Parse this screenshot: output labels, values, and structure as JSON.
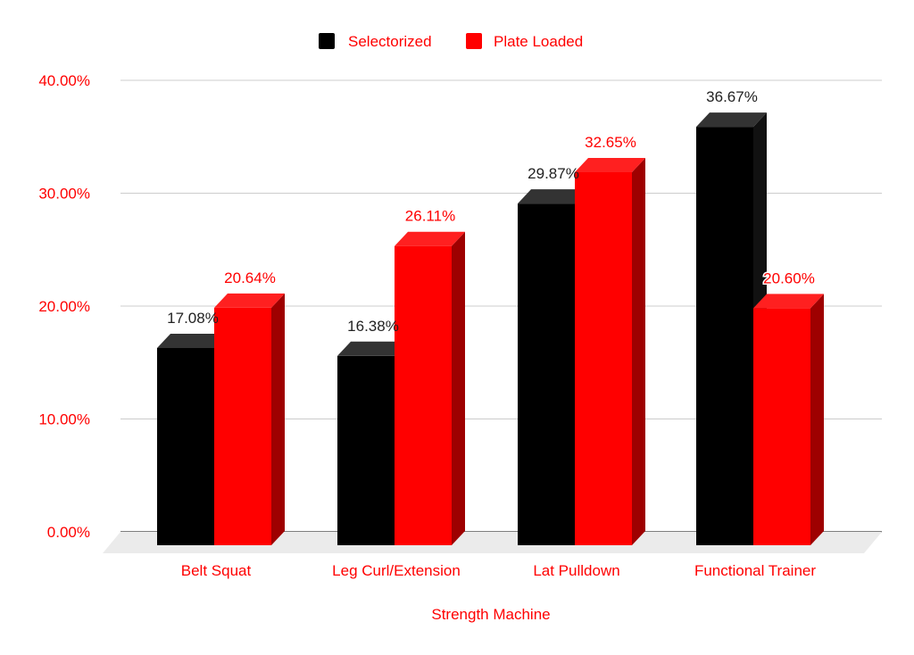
{
  "chart_data": {
    "type": "bar",
    "style": "3d-clustered-column",
    "categories": [
      "Belt Squat",
      "Leg Curl/Extension",
      "Lat Pulldown",
      "Functional Trainer"
    ],
    "series": [
      {
        "name": "Selectorized",
        "values": [
          17.08,
          16.38,
          29.87,
          36.67
        ],
        "labels": [
          "17.08%",
          "16.38%",
          "29.87%",
          "36.67%"
        ],
        "color": "#000000",
        "label_color": "#222222"
      },
      {
        "name": "Plate Loaded",
        "values": [
          20.64,
          26.11,
          32.65,
          20.6
        ],
        "labels": [
          "20.64%",
          "26.11%",
          "32.65%",
          "20.60%"
        ],
        "color": "#ff0000",
        "label_color": "#ff0000"
      }
    ],
    "xlabel": "Strength Machine",
    "ylabel": "",
    "ylim": [
      0,
      40
    ],
    "yticks": [
      {
        "value": 0,
        "label": "0.00%"
      },
      {
        "value": 10,
        "label": "10.00%"
      },
      {
        "value": 20,
        "label": "20.00%"
      },
      {
        "value": 30,
        "label": "30.00%"
      },
      {
        "value": 40,
        "label": "40.00%"
      }
    ],
    "grid": true,
    "legend_position": "top-center"
  }
}
